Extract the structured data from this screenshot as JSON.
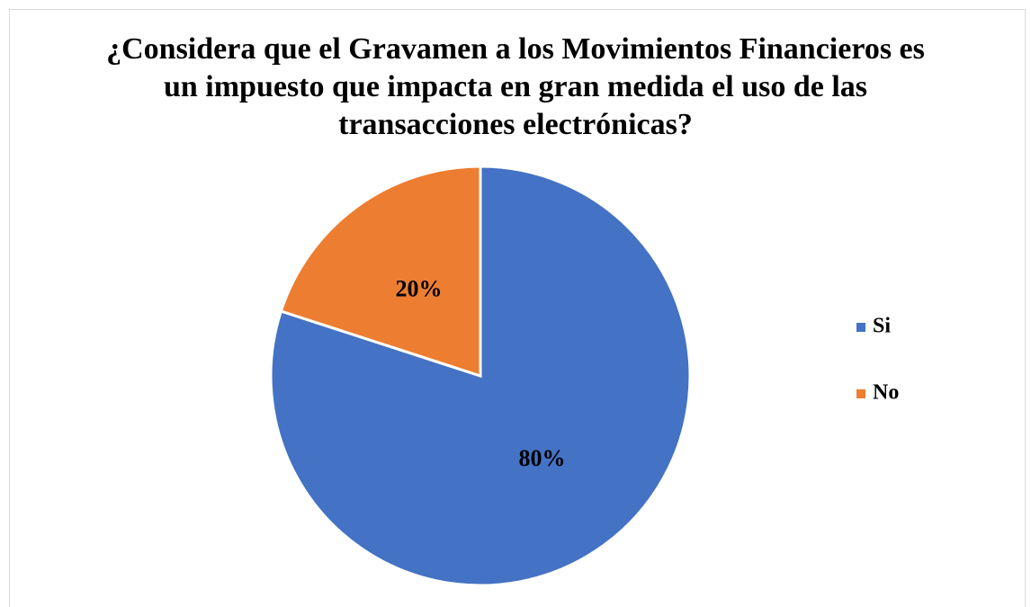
{
  "chart_data": {
    "type": "pie",
    "title": "¿Considera que el Gravamen a los Movimientos Financieros es un impuesto que impacta en gran medida el uso de las transacciones electrónicas?",
    "categories": [
      "Si",
      "No"
    ],
    "values": [
      80,
      20
    ],
    "value_labels": [
      "80%",
      "20%"
    ],
    "colors": [
      "#4472c4",
      "#ed7d31"
    ],
    "legend": "right"
  }
}
